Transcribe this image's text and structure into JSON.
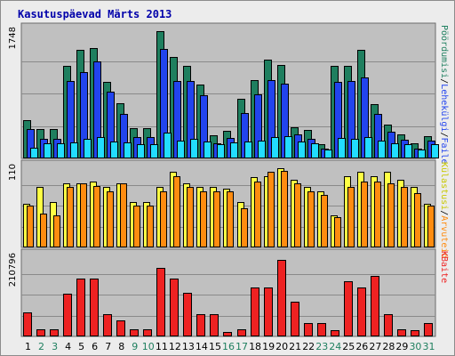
{
  "title": "Kasutuspäevad Märts 2013",
  "colors": {
    "title": "#0000aa",
    "panel_bg": "#c0c0c0",
    "grid": "#8a8a8a",
    "visits": "#1f7f5f",
    "pages": "#2244ee",
    "files": "#22ddff",
    "hosts": "#ffff44",
    "kbytes": "#ee2222",
    "sites": "#ff8c10",
    "weekend_day": "#1f7f5f",
    "weekday_day": "#000000"
  },
  "chart_data": {
    "type": "bar",
    "days": [
      "1",
      "2",
      "3",
      "4",
      "5",
      "6",
      "7",
      "8",
      "9",
      "10",
      "11",
      "12",
      "13",
      "14",
      "15",
      "16",
      "17",
      "18",
      "19",
      "20",
      "21",
      "22",
      "23",
      "24",
      "25",
      "26",
      "27",
      "28",
      "29",
      "30",
      "31"
    ],
    "weekend_days": [
      "2",
      "3",
      "9",
      "10",
      "16",
      "17",
      "23",
      "24",
      "30",
      "31"
    ],
    "panels": [
      {
        "id": "requests",
        "ymax_label": "1748",
        "ymax": 1748,
        "right_labels": [
          {
            "text": "Pöördumisi",
            "color": "#1f7f5f"
          },
          {
            "text": "Lehekülgi",
            "color": "#2244ee"
          },
          {
            "text": "Faile",
            "color": "#2244ee"
          }
        ],
        "series": [
          {
            "name": "Pöördumisi",
            "values": [
              520,
              400,
              400,
              1250,
              1470,
              1490,
              1030,
              750,
              410,
              410,
              1720,
              1370,
              1250,
              1000,
              310,
              370,
              800,
              1060,
              1330,
              1260,
              420,
              380,
              190,
              1250,
              1250,
              1470,
              730,
              460,
              330,
              200,
              300
            ]
          },
          {
            "name": "Lehekülgi",
            "values": [
              400,
              270,
              270,
              1040,
              1170,
              1310,
              900,
              600,
              290,
              290,
              1480,
              1050,
              1050,
              850,
              200,
              280,
              610,
              860,
              1060,
              1010,
              330,
              260,
              130,
              1030,
              1040,
              1090,
              600,
              360,
              250,
              130,
              240
            ]
          },
          {
            "name": "Faile",
            "values": [
              150,
              200,
              200,
              220,
              270,
              290,
              230,
              220,
              190,
              190,
              350,
              240,
              260,
              230,
              190,
              220,
              230,
              240,
              290,
              300,
              230,
              210,
              120,
              280,
              270,
              290,
              240,
              210,
              190,
              120,
              190
            ]
          }
        ]
      },
      {
        "id": "sites",
        "ymax_label": "110",
        "ymax": 110,
        "right_labels": [
          {
            "text": "Külastusi",
            "color": "#c8c800"
          },
          {
            "text": "Arvuteid",
            "color": "#ff8c10"
          }
        ],
        "series": [
          {
            "name": "Külastusi",
            "values": [
              58,
              80,
              60,
              85,
              85,
              87,
              80,
              85,
              60,
              60,
              80,
              100,
              85,
              80,
              80,
              78,
              60,
              93,
              95,
              105,
              90,
              80,
              75,
              43,
              95,
              100,
              95,
              100,
              90,
              80,
              58
            ]
          },
          {
            "name": "Arvuteid",
            "values": [
              55,
              45,
              43,
              80,
              85,
              82,
              75,
              85,
              55,
              55,
              75,
              95,
              80,
              75,
              75,
              74,
              52,
              87,
              100,
              102,
              85,
              75,
              70,
              40,
              80,
              87,
              87,
              85,
              80,
              72,
              55
            ]
          }
        ]
      },
      {
        "id": "kbytes",
        "ymax_label": "210796",
        "ymax": 210796,
        "right_labels": [
          {
            "text": "KBaite",
            "color": "#ee2222"
          }
        ],
        "series": [
          {
            "name": "KBaite",
            "values": [
              62000,
              18000,
              18000,
              108000,
              148000,
              148000,
              56000,
              41000,
              18000,
              18000,
              175000,
              148000,
              112000,
              56000,
              56000,
              12000,
              18000,
              124000,
              124000,
              195000,
              88000,
              35000,
              35000,
              15000,
              140000,
              124000,
              155000,
              56000,
              18000,
              15000,
              35000
            ]
          }
        ]
      }
    ]
  }
}
